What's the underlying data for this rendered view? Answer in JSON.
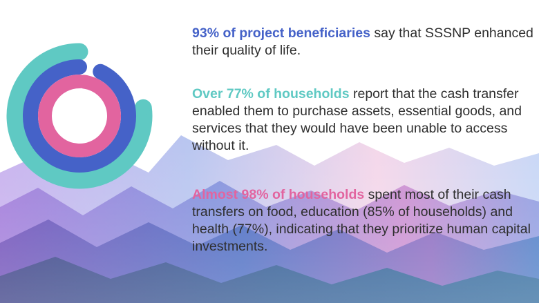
{
  "colors": {
    "blue": "#4562c8",
    "teal": "#5fc9c3",
    "pink": "#e2649f"
  },
  "stats": [
    {
      "highlight": "93% of project beneficiaries",
      "text": " say that SSSNP enhanced their quality of life.",
      "color": "#4562c8"
    },
    {
      "highlight": "Over 77% of households",
      "text": " report that the cash transfer enabled them to purchase assets, essential goods, and services that they would have been unable to access without it.",
      "color": "#5fc9c3"
    },
    {
      "highlight": "Almost 98% of households",
      "text": " spent most of their cash transfers on food, education (85% of households) and health (77%), indicating that they prioritize human capital investments.",
      "color": "#e2649f"
    }
  ],
  "chart_data": {
    "type": "radial-bar",
    "max": 100,
    "series": [
      {
        "value": 77,
        "color": "#5fc9c3"
      },
      {
        "value": 93,
        "color": "#4562c8"
      },
      {
        "value": 98,
        "color": "#e2649f"
      }
    ]
  }
}
